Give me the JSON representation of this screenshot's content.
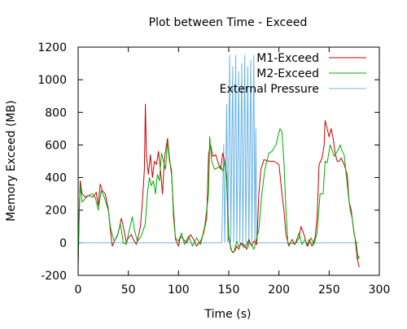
{
  "chart_data": {
    "type": "line",
    "title": "Plot between Time - Exceed",
    "xlabel": "Time (s)",
    "ylabel": "Memory Exceed (MB)",
    "xlim": [
      0,
      300
    ],
    "ylim": [
      -200,
      1200
    ],
    "xticks": [
      0,
      50,
      100,
      150,
      200,
      250,
      300
    ],
    "yticks": [
      -200,
      0,
      200,
      400,
      600,
      800,
      1000,
      1200
    ],
    "grid": false,
    "legend_position": "top-right",
    "series": [
      {
        "name": "M1-Exceed",
        "color": "#cc0000",
        "points": [
          [
            0,
            -150
          ],
          [
            1,
            150
          ],
          [
            2,
            380
          ],
          [
            4,
            300
          ],
          [
            7,
            280
          ],
          [
            10,
            290
          ],
          [
            15,
            280
          ],
          [
            18,
            310
          ],
          [
            20,
            230
          ],
          [
            22,
            360
          ],
          [
            24,
            320
          ],
          [
            27,
            300
          ],
          [
            30,
            210
          ],
          [
            32,
            80
          ],
          [
            34,
            -20
          ],
          [
            37,
            20
          ],
          [
            40,
            60
          ],
          [
            43,
            150
          ],
          [
            45,
            100
          ],
          [
            48,
            0
          ],
          [
            50,
            30
          ],
          [
            53,
            50
          ],
          [
            55,
            20
          ],
          [
            58,
            -10
          ],
          [
            60,
            40
          ],
          [
            62,
            100
          ],
          [
            64,
            250
          ],
          [
            66,
            450
          ],
          [
            67,
            850
          ],
          [
            68,
            530
          ],
          [
            70,
            420
          ],
          [
            72,
            540
          ],
          [
            74,
            400
          ],
          [
            76,
            500
          ],
          [
            78,
            480
          ],
          [
            80,
            560
          ],
          [
            82,
            450
          ],
          [
            84,
            300
          ],
          [
            86,
            520
          ],
          [
            88,
            600
          ],
          [
            89,
            640
          ],
          [
            91,
            520
          ],
          [
            93,
            420
          ],
          [
            95,
            200
          ],
          [
            97,
            20
          ],
          [
            100,
            -20
          ],
          [
            102,
            40
          ],
          [
            105,
            20
          ],
          [
            108,
            0
          ],
          [
            112,
            50
          ],
          [
            115,
            20
          ],
          [
            118,
            -20
          ],
          [
            122,
            10
          ],
          [
            125,
            60
          ],
          [
            128,
            150
          ],
          [
            130,
            550
          ],
          [
            132,
            600
          ],
          [
            134,
            530
          ],
          [
            137,
            540
          ],
          [
            140,
            480
          ],
          [
            142,
            450
          ],
          [
            144,
            550
          ],
          [
            146,
            500
          ],
          [
            148,
            400
          ],
          [
            150,
            50
          ],
          [
            152,
            -40
          ],
          [
            154,
            -60
          ],
          [
            156,
            -50
          ],
          [
            158,
            -20
          ],
          [
            160,
            -40
          ],
          [
            162,
            0
          ],
          [
            165,
            -10
          ],
          [
            168,
            -40
          ],
          [
            170,
            20
          ],
          [
            173,
            -20
          ],
          [
            175,
            10
          ],
          [
            178,
            -10
          ],
          [
            180,
            300
          ],
          [
            182,
            450
          ],
          [
            185,
            510
          ],
          [
            190,
            500
          ],
          [
            195,
            500
          ],
          [
            200,
            480
          ],
          [
            203,
            300
          ],
          [
            205,
            200
          ],
          [
            207,
            50
          ],
          [
            210,
            -20
          ],
          [
            213,
            20
          ],
          [
            216,
            -10
          ],
          [
            220,
            30
          ],
          [
            222,
            100
          ],
          [
            225,
            50
          ],
          [
            228,
            -20
          ],
          [
            230,
            20
          ],
          [
            233,
            -20
          ],
          [
            236,
            30
          ],
          [
            238,
            150
          ],
          [
            240,
            480
          ],
          [
            243,
            520
          ],
          [
            245,
            600
          ],
          [
            246,
            750
          ],
          [
            248,
            700
          ],
          [
            250,
            650
          ],
          [
            252,
            700
          ],
          [
            254,
            640
          ],
          [
            256,
            550
          ],
          [
            258,
            500
          ],
          [
            260,
            500
          ],
          [
            262,
            520
          ],
          [
            265,
            480
          ],
          [
            268,
            420
          ],
          [
            270,
            250
          ],
          [
            272,
            200
          ],
          [
            274,
            100
          ],
          [
            276,
            20
          ],
          [
            278,
            -100
          ],
          [
            280,
            -150
          ]
        ]
      },
      {
        "name": "M2-Exceed",
        "color": "#00aa00",
        "points": [
          [
            0,
            -130
          ],
          [
            1,
            180
          ],
          [
            2,
            350
          ],
          [
            4,
            250
          ],
          [
            7,
            270
          ],
          [
            10,
            290
          ],
          [
            14,
            300
          ],
          [
            17,
            280
          ],
          [
            20,
            200
          ],
          [
            23,
            320
          ],
          [
            26,
            280
          ],
          [
            30,
            200
          ],
          [
            32,
            100
          ],
          [
            34,
            50
          ],
          [
            36,
            10
          ],
          [
            39,
            40
          ],
          [
            42,
            120
          ],
          [
            45,
            0
          ],
          [
            48,
            -10
          ],
          [
            51,
            80
          ],
          [
            54,
            160
          ],
          [
            56,
            80
          ],
          [
            59,
            10
          ],
          [
            62,
            30
          ],
          [
            65,
            80
          ],
          [
            67,
            120
          ],
          [
            69,
            300
          ],
          [
            71,
            400
          ],
          [
            73,
            350
          ],
          [
            75,
            380
          ],
          [
            77,
            300
          ],
          [
            79,
            420
          ],
          [
            81,
            380
          ],
          [
            83,
            550
          ],
          [
            85,
            500
          ],
          [
            87,
            450
          ],
          [
            89,
            620
          ],
          [
            91,
            500
          ],
          [
            93,
            450
          ],
          [
            95,
            150
          ],
          [
            97,
            30
          ],
          [
            100,
            10
          ],
          [
            103,
            60
          ],
          [
            106,
            -10
          ],
          [
            110,
            40
          ],
          [
            114,
            -20
          ],
          [
            118,
            30
          ],
          [
            122,
            -10
          ],
          [
            126,
            100
          ],
          [
            130,
            300
          ],
          [
            131,
            650
          ],
          [
            133,
            500
          ],
          [
            136,
            450
          ],
          [
            139,
            460
          ],
          [
            142,
            470
          ],
          [
            144,
            440
          ],
          [
            146,
            500
          ],
          [
            148,
            380
          ],
          [
            150,
            20
          ],
          [
            153,
            -50
          ],
          [
            155,
            -60
          ],
          [
            158,
            10
          ],
          [
            160,
            -20
          ],
          [
            163,
            -10
          ],
          [
            166,
            -30
          ],
          [
            169,
            10
          ],
          [
            172,
            -10
          ],
          [
            175,
            -40
          ],
          [
            178,
            30
          ],
          [
            180,
            80
          ],
          [
            183,
            300
          ],
          [
            186,
            450
          ],
          [
            190,
            550
          ],
          [
            193,
            560
          ],
          [
            197,
            600
          ],
          [
            199,
            650
          ],
          [
            201,
            700
          ],
          [
            203,
            680
          ],
          [
            205,
            500
          ],
          [
            207,
            200
          ],
          [
            209,
            -10
          ],
          [
            212,
            0
          ],
          [
            216,
            -10
          ],
          [
            220,
            60
          ],
          [
            223,
            -10
          ],
          [
            226,
            20
          ],
          [
            229,
            -20
          ],
          [
            232,
            30
          ],
          [
            235,
            -10
          ],
          [
            238,
            60
          ],
          [
            241,
            300
          ],
          [
            244,
            300
          ],
          [
            246,
            500
          ],
          [
            248,
            490
          ],
          [
            251,
            600
          ],
          [
            253,
            570
          ],
          [
            255,
            530
          ],
          [
            257,
            550
          ],
          [
            259,
            570
          ],
          [
            261,
            600
          ],
          [
            263,
            560
          ],
          [
            265,
            540
          ],
          [
            267,
            420
          ],
          [
            269,
            300
          ],
          [
            271,
            200
          ],
          [
            273,
            150
          ],
          [
            275,
            50
          ],
          [
            277,
            0
          ],
          [
            279,
            -100
          ],
          [
            280,
            -80
          ]
        ]
      },
      {
        "name": "External Pressure",
        "color": "#6ab4e8",
        "points": [
          [
            0,
            -20
          ],
          [
            1,
            0
          ],
          [
            140,
            0
          ],
          [
            143,
            0
          ],
          [
            145,
            600
          ],
          [
            146,
            0
          ],
          [
            148,
            850
          ],
          [
            149,
            0
          ],
          [
            151,
            1150
          ],
          [
            152,
            0
          ],
          [
            154,
            1080
          ],
          [
            155,
            0
          ],
          [
            157,
            1150
          ],
          [
            158,
            0
          ],
          [
            160,
            1050
          ],
          [
            161,
            0
          ],
          [
            163,
            1100
          ],
          [
            164,
            -30
          ],
          [
            166,
            1150
          ],
          [
            167,
            0
          ],
          [
            169,
            1080
          ],
          [
            170,
            -30
          ],
          [
            172,
            1120
          ],
          [
            173,
            0
          ],
          [
            175,
            1150
          ],
          [
            176,
            0
          ],
          [
            177,
            700
          ],
          [
            178,
            0
          ],
          [
            180,
            0
          ],
          [
            280,
            0
          ]
        ]
      }
    ]
  }
}
